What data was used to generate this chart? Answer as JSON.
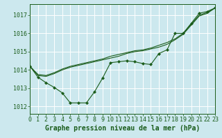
{
  "background_color": "#cce8ee",
  "grid_color": "#b8d8de",
  "line_color": "#1a5c1a",
  "xlabel": "Graphe pression niveau de la mer (hPa)",
  "xlabel_fontsize": 7,
  "tick_fontsize": 6,
  "yticks": [
    1012,
    1013,
    1014,
    1015,
    1016,
    1017
  ],
  "xticks": [
    0,
    1,
    2,
    3,
    4,
    5,
    6,
    7,
    8,
    9,
    10,
    11,
    12,
    13,
    14,
    15,
    16,
    17,
    18,
    19,
    20,
    21,
    22,
    23
  ],
  "xlim": [
    0,
    23
  ],
  "ylim": [
    1011.6,
    1017.6
  ],
  "series_main": [
    1014.2,
    1013.6,
    1013.3,
    1013.05,
    1012.75,
    1012.2,
    1012.2,
    1012.2,
    1012.8,
    1013.55,
    1014.4,
    1014.45,
    1014.5,
    1014.45,
    1014.35,
    1014.3,
    1014.9,
    1015.1,
    1016.0,
    1016.0,
    1016.55,
    1017.1,
    1017.2,
    1017.4
  ],
  "series_upper": [
    1014.2,
    1013.75,
    1013.7,
    1013.85,
    1014.05,
    1014.2,
    1014.3,
    1014.4,
    1014.5,
    1014.6,
    1014.75,
    1014.85,
    1014.95,
    1015.05,
    1015.1,
    1015.2,
    1015.35,
    1015.5,
    1015.7,
    1016.0,
    1016.5,
    1017.0,
    1017.15,
    1017.4
  ],
  "series_lower": [
    1014.2,
    1013.7,
    1013.65,
    1013.8,
    1014.0,
    1014.15,
    1014.25,
    1014.35,
    1014.45,
    1014.55,
    1014.65,
    1014.75,
    1014.9,
    1015.0,
    1015.05,
    1015.15,
    1015.25,
    1015.4,
    1015.65,
    1015.95,
    1016.45,
    1016.95,
    1017.1,
    1017.4
  ]
}
